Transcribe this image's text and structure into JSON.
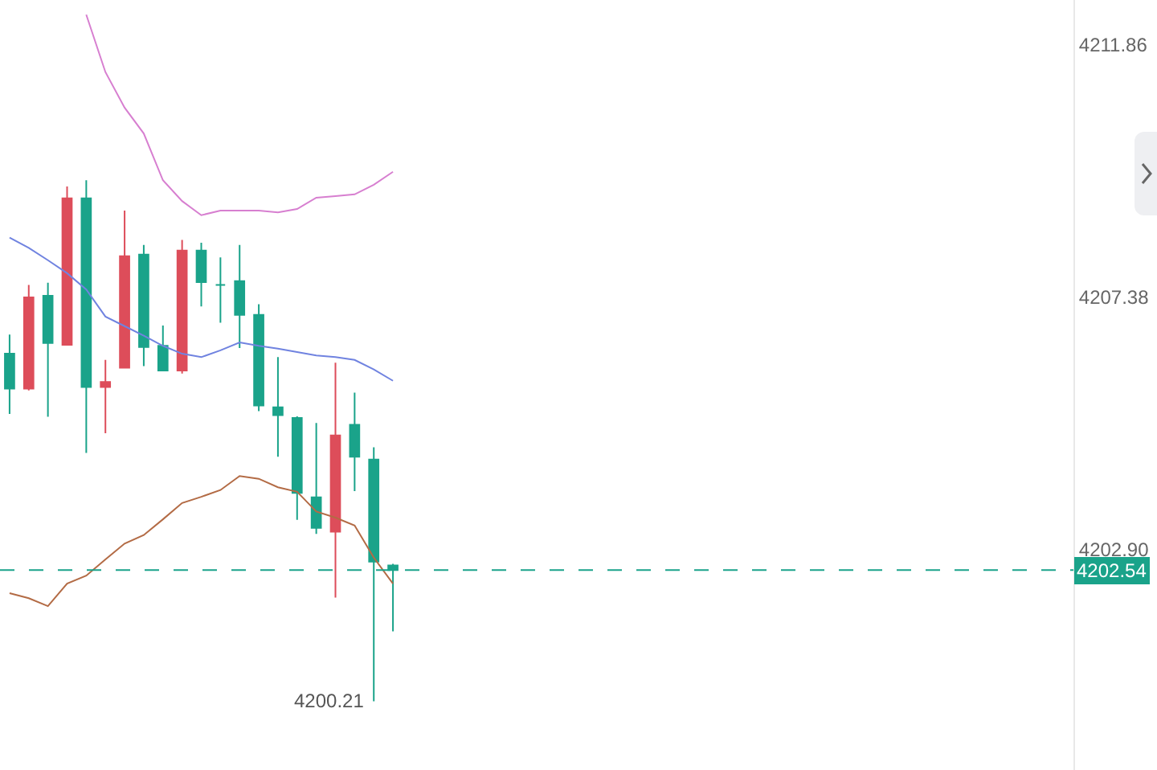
{
  "chart_data": {
    "type": "candlestick",
    "categories": [
      null,
      null,
      null,
      null,
      null,
      null,
      null,
      null,
      null,
      null,
      null,
      null,
      null,
      null,
      null,
      null,
      null,
      null,
      null,
      null,
      null,
      null,
      null,
      null,
      null,
      null,
      null,
      null,
      null,
      null,
      null,
      null,
      null,
      null,
      null,
      null,
      null,
      null,
      null,
      null,
      null,
      null,
      null,
      null,
      null,
      null,
      null,
      null,
      null,
      null,
      null,
      null,
      null,
      null,
      null,
      null
    ],
    "series": [
      {
        "type": "line",
        "color": "#d77fd0",
        "values": [
          null,
          null,
          null,
          null,
          4212.4,
          4211.38,
          4210.75,
          4210.29,
          4209.46,
          4209.09,
          4208.84,
          4208.92,
          4208.92,
          4208.92,
          4208.89,
          4208.95,
          4209.15,
          4209.18,
          4209.21,
          4209.38,
          4209.61,
          null,
          null,
          null,
          null,
          null,
          null,
          null,
          null,
          null,
          null,
          null,
          null,
          null,
          null,
          null,
          null,
          null,
          null,
          null,
          null,
          null,
          null,
          null,
          null,
          null,
          null,
          null,
          null,
          null,
          null,
          null,
          null,
          null,
          null,
          null
        ]
      },
      {
        "type": "line",
        "color": "#7083e0",
        "values": [
          4208.44,
          4208.26,
          4208.04,
          4207.81,
          4207.52,
          4207.04,
          4206.87,
          4206.7,
          4206.52,
          4206.38,
          4206.32,
          4206.44,
          4206.58,
          4206.52,
          4206.47,
          4206.41,
          4206.35,
          4206.32,
          4206.27,
          4206.1,
          4205.9,
          null,
          null,
          null,
          null,
          null,
          null,
          null,
          null,
          null,
          null,
          null,
          null,
          null,
          null,
          null,
          null,
          null,
          null,
          null,
          null,
          null,
          null,
          null,
          null,
          null,
          null,
          null,
          null,
          null,
          null,
          null,
          null,
          null,
          null,
          null
        ]
      },
      {
        "type": "line",
        "color": "#b36b45",
        "values": [
          4202.13,
          4202.04,
          4201.9,
          4202.3,
          4202.44,
          4202.73,
          4203.01,
          4203.16,
          4203.44,
          4203.73,
          4203.84,
          4203.96,
          4204.21,
          4204.16,
          4204.01,
          4203.93,
          4203.58,
          4203.47,
          4203.33,
          4202.76,
          4202.3,
          null,
          null,
          null,
          null,
          null,
          null,
          null,
          null,
          null,
          null,
          null,
          null,
          null,
          null,
          null,
          null,
          null,
          null,
          null,
          null,
          null,
          null,
          null,
          null,
          null,
          null,
          null,
          null,
          null,
          null,
          null,
          null,
          null,
          null,
          null
        ]
      },
      {
        "type": "candlestick",
        "ohlc": [
          [
            4206.38,
            4206.72,
            4205.31,
            4205.76
          ],
          [
            4205.76,
            4207.6,
            4205.73,
            4207.38
          ],
          [
            4207.41,
            4207.64,
            4205.26,
            4206.57
          ],
          [
            4206.54,
            4209.35,
            4206.54,
            4209.14
          ],
          [
            4209.14,
            4209.46,
            4204.62,
            4205.79
          ],
          [
            4205.79,
            4206.27,
            4204.97,
            4205.88
          ],
          [
            4206.13,
            4208.92,
            4206.13,
            4208.11
          ],
          [
            4208.14,
            4208.31,
            4206.16,
            4206.5
          ],
          [
            4206.52,
            4206.88,
            4206.08,
            4206.08
          ],
          [
            4206.08,
            4208.4,
            4206.03,
            4208.21
          ],
          [
            4208.21,
            4208.35,
            4207.22,
            4207.65
          ],
          [
            4207.6,
            4208.09,
            4206.93,
            4207.6
          ],
          [
            4207.67,
            4208.31,
            4206.48,
            4207.07
          ],
          [
            4207.07,
            4207.26,
            4205.36,
            4205.46
          ],
          [
            4205.43,
            4206.32,
            4204.55,
            4205.29
          ],
          [
            4205.24,
            4205.27,
            4203.43,
            4203.91
          ],
          [
            4203.83,
            4205.15,
            4203.18,
            4203.29
          ],
          [
            4203.22,
            4206.22,
            4202.05,
            4204.93
          ],
          [
            4205.12,
            4205.69,
            4203.94,
            4204.55
          ],
          [
            4204.5,
            4204.72,
            4200.21,
            4202.69
          ],
          [
            4202.62,
            4202.65,
            4201.45,
            4202.54
          ],
          null,
          null,
          null,
          null,
          null,
          null,
          null,
          null,
          null,
          null,
          null,
          null,
          null,
          null,
          null,
          null,
          null,
          null,
          null,
          null,
          null,
          null,
          null,
          null,
          null,
          null,
          null,
          null,
          null,
          null,
          null,
          null,
          null,
          null,
          null
        ],
        "colors": [
          "#1aa38a",
          "#dd4d5a",
          "#1aa38a",
          "#dd4d5a",
          "#1aa38a",
          "#dd4d5a",
          "#dd4d5a",
          "#1aa38a",
          "#1aa38a",
          "#dd4d5a",
          "#1aa38a",
          "#1aa38a",
          "#1aa38a",
          "#1aa38a",
          "#1aa38a",
          "#1aa38a",
          "#1aa38a",
          "#dd4d5a",
          "#1aa38a",
          "#1aa38a",
          "#1aa38a",
          null,
          null,
          null,
          null,
          null,
          null,
          null,
          null,
          null,
          null,
          null,
          null,
          null,
          null,
          null,
          null,
          null,
          null,
          null,
          null,
          null,
          null,
          null,
          null,
          null,
          null,
          null,
          null,
          null,
          null,
          null,
          null,
          null,
          null,
          null
        ]
      }
    ],
    "ylim": [
      4198.99,
      4212.66
    ],
    "yticks": [
      4211.86,
      4207.38,
      {
        "value": 4202.9,
        "label": "4202.90"
      }
    ],
    "ref_lines": [
      {
        "axis": "y",
        "value": 4202.54,
        "label": "4202.54",
        "color": "#1aa38a",
        "line_style": "dashed"
      }
    ],
    "annotations": [
      "4200.21"
    ],
    "grid": false,
    "legend": false
  }
}
